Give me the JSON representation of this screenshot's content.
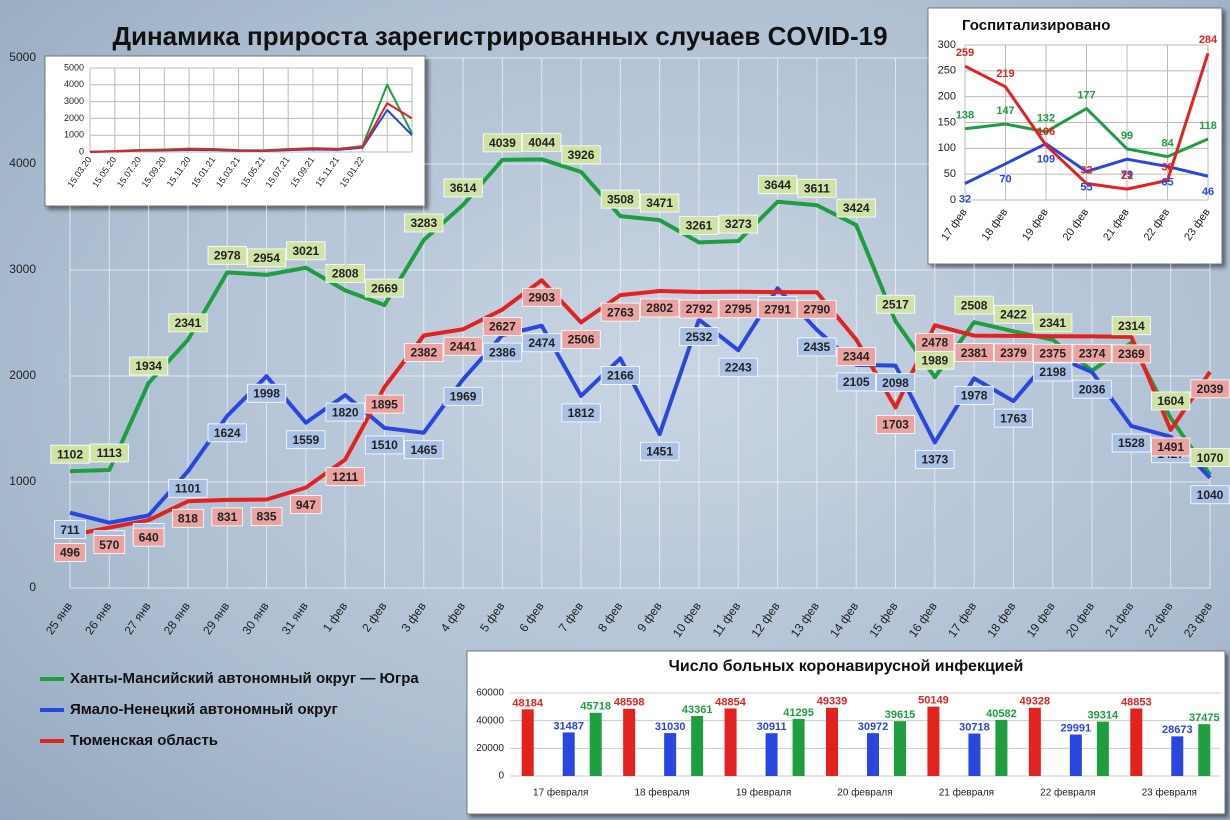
{
  "chart_data": [
    {
      "type": "line",
      "title": "Динамика прироста зарегистрированных случаев COVID-19",
      "categories": [
        "25 янв",
        "26 янв",
        "27 янв",
        "28 янв",
        "29 янв",
        "30 янв",
        "31 янв",
        "1 фев",
        "2 фев",
        "3 фев",
        "4 фев",
        "5 фев",
        "6 фев",
        "7 фев",
        "8 фев",
        "9 фев",
        "10 фев",
        "11 фев",
        "12 фев",
        "13 фев",
        "14 фев",
        "15 фев",
        "16 фев",
        "17 фев",
        "18 фев",
        "19 фев",
        "20 фев",
        "21 фев",
        "22 фев",
        "23 фев"
      ],
      "series": [
        {
          "name": "Ханты-Мансийский автономный округ — Югра",
          "color": "#1e9e3e",
          "label_color": "#cfe3a6",
          "values": [
            1102,
            1113,
            1934,
            2341,
            2978,
            2954,
            3021,
            2808,
            2669,
            3283,
            3614,
            4039,
            4044,
            3926,
            3508,
            3471,
            3261,
            3273,
            3644,
            3611,
            3424,
            2517,
            1989,
            2508,
            2422,
            2341,
            2050,
            2314,
            1604,
            1070
          ]
        },
        {
          "name": "Ямало-Ненецкий автономный округ",
          "color": "#2a46e0",
          "label_color": "#a9c1e4",
          "values": [
            711,
            616,
            684,
            1101,
            1624,
            1998,
            1559,
            1820,
            1510,
            1465,
            1969,
            2386,
            2474,
            1812,
            2166,
            1451,
            2532,
            2243,
            2827,
            2435,
            2105,
            2098,
            1373,
            1978,
            1763,
            2198,
            2036,
            1528,
            1427,
            1040
          ]
        },
        {
          "name": "Тюменская область",
          "color": "#e3221f",
          "label_color": "#eaa3a0",
          "values": [
            496,
            570,
            640,
            818,
            831,
            835,
            947,
            1211,
            1895,
            2382,
            2441,
            2627,
            2903,
            2506,
            2763,
            2802,
            2792,
            2795,
            2791,
            2790,
            2344,
            1703,
            2478,
            2381,
            2379,
            2375,
            2374,
            2369,
            1491,
            2039
          ]
        }
      ],
      "ylim": [
        0,
        5000
      ],
      "yticks": [
        0,
        1000,
        2000,
        3000,
        4000,
        5000
      ],
      "grid": true,
      "legend": "bottom-left"
    },
    {
      "type": "line",
      "categories": [
        "15.03.20",
        "15.05.20",
        "15.07.20",
        "15.09.20",
        "15.11.20",
        "15.01.21",
        "15.03.21",
        "15.05.21",
        "15.07.21",
        "15.09.21",
        "15.11.21",
        "15.01.22",
        null,
        null
      ],
      "series": [
        {
          "color": "#1e9e3e",
          "values": [
            10,
            60,
            120,
            150,
            200,
            180,
            110,
            100,
            180,
            230,
            190,
            350,
            4000,
            1100
          ]
        },
        {
          "color": "#2a46e0",
          "values": [
            5,
            30,
            80,
            100,
            120,
            110,
            70,
            60,
            110,
            150,
            130,
            250,
            2500,
            1000
          ]
        },
        {
          "color": "#e3221f",
          "values": [
            5,
            40,
            100,
            120,
            160,
            150,
            90,
            80,
            150,
            200,
            170,
            300,
            2900,
            2000
          ]
        }
      ],
      "ylim": [
        0,
        5000
      ],
      "yticks": [
        0,
        1000,
        2000,
        3000,
        4000,
        5000
      ],
      "grid": true
    },
    {
      "type": "line",
      "title": "Госпитализировано",
      "categories": [
        "17 фев",
        "18 фев",
        "19 фев",
        "20 фев",
        "21 фев",
        "22 фев",
        "23 фев"
      ],
      "series": [
        {
          "color": "#1e9e3e",
          "values": [
            138,
            147,
            132,
            177,
            99,
            84,
            118
          ]
        },
        {
          "color": "#2a46e0",
          "values": [
            32,
            70,
            109,
            55,
            79,
            65,
            46
          ]
        },
        {
          "color": "#e3221f",
          "values": [
            259,
            219,
            106,
            32,
            21,
            38,
            284
          ]
        }
      ],
      "ylim": [
        0,
        300
      ],
      "yticks": [
        0,
        50,
        100,
        150,
        200,
        250,
        300
      ],
      "grid": true
    },
    {
      "type": "bar",
      "title": "Число больных коронавирусной инфекцией",
      "categories": [
        "17 февраля",
        "18 февраля",
        "19 февраля",
        "20 февраля",
        "21 февраля",
        "22 февраля",
        "23 февраля"
      ],
      "series": [
        {
          "color": "#e3221f",
          "values": [
            48184,
            48598,
            48854,
            49339,
            50149,
            49328,
            48853
          ]
        },
        {
          "color": "#2a46e0",
          "values": [
            31487,
            31030,
            30911,
            30972,
            30718,
            29991,
            28673
          ]
        },
        {
          "color": "#1e9e3e",
          "values": [
            45718,
            43361,
            41295,
            39615,
            40582,
            39314,
            37475
          ]
        }
      ],
      "ylim": [
        0,
        60000
      ],
      "yticks": [
        0,
        20000,
        40000,
        60000
      ],
      "grid": true
    }
  ]
}
